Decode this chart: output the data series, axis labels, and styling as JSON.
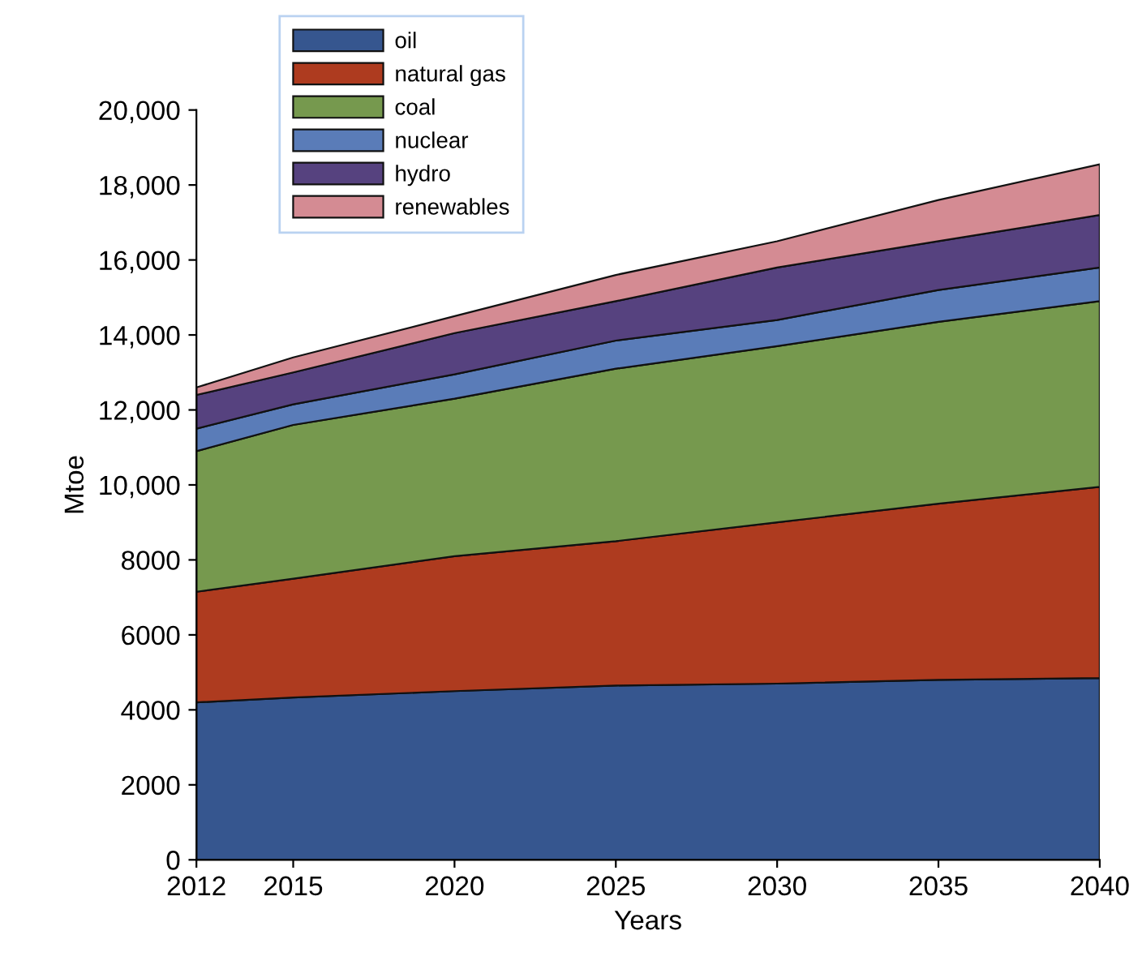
{
  "chart_data": {
    "type": "area",
    "stacked": true,
    "xlabel": "Years",
    "ylabel": "Mtoe",
    "x": [
      2012,
      2015,
      2020,
      2025,
      2030,
      2035,
      2040
    ],
    "series": [
      {
        "name": "oil",
        "color": "#36568f",
        "values": [
          4200,
          4330,
          4500,
          4650,
          4700,
          4800,
          4850
        ]
      },
      {
        "name": "natural gas",
        "color": "#ae3b1f",
        "values": [
          2950,
          3170,
          3600,
          3850,
          4300,
          4700,
          5100
        ]
      },
      {
        "name": "coal",
        "color": "#76994e",
        "values": [
          3750,
          4100,
          4200,
          4600,
          4700,
          4850,
          4950
        ]
      },
      {
        "name": "nuclear",
        "color": "#5a7cb8",
        "values": [
          600,
          550,
          650,
          750,
          700,
          850,
          900
        ]
      },
      {
        "name": "hydro",
        "color": "#56427f",
        "values": [
          900,
          850,
          1100,
          1050,
          1400,
          1300,
          1400
        ]
      },
      {
        "name": "renewables",
        "color": "#d48b93",
        "values": [
          200,
          400,
          450,
          700,
          700,
          1100,
          1350
        ]
      }
    ],
    "xlim": [
      2012,
      2040
    ],
    "xticks": [
      2012,
      2015,
      2020,
      2025,
      2030,
      2035,
      2040
    ],
    "ylim": [
      0,
      20000
    ],
    "yticks": [
      {
        "value": 0,
        "label": "0"
      },
      {
        "value": 2000,
        "label": "2000"
      },
      {
        "value": 4000,
        "label": "4000"
      },
      {
        "value": 6000,
        "label": "6000"
      },
      {
        "value": 8000,
        "label": "8000"
      },
      {
        "value": 10000,
        "label": "10,000"
      },
      {
        "value": 12000,
        "label": "12,000"
      },
      {
        "value": 14000,
        "label": "14,000"
      },
      {
        "value": 16000,
        "label": "16,000"
      },
      {
        "value": 18000,
        "label": "18,000"
      },
      {
        "value": 20000,
        "label": "20,000"
      }
    ],
    "grid": false,
    "legend": "top left"
  }
}
